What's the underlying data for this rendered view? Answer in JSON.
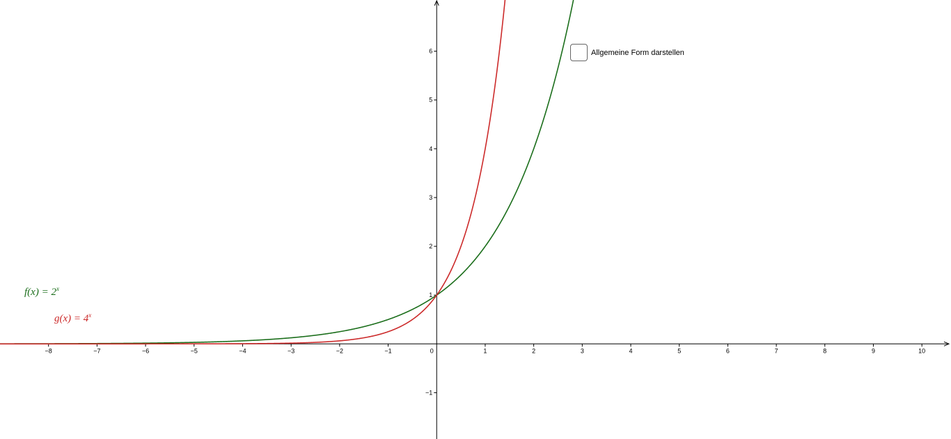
{
  "checkbox": {
    "label": "Allgemeine Form darstellen",
    "checked": false
  },
  "legend": {
    "f": {
      "prefix": "f(x) = 2",
      "exp": "x",
      "color": "#1b6e1b"
    },
    "g": {
      "prefix": "g(x) = 4",
      "exp": "x",
      "color": "#cc2a2a"
    }
  },
  "chart_data": {
    "type": "line",
    "title": "",
    "xlabel": "",
    "ylabel": "",
    "xlim": [
      -9,
      10.6
    ],
    "ylim": [
      -1.95,
      7.05
    ],
    "grid": false,
    "x_ticks": [
      -8,
      -7,
      -6,
      -5,
      -4,
      -3,
      -2,
      -1,
      0,
      1,
      2,
      3,
      4,
      5,
      6,
      7,
      8,
      9,
      10
    ],
    "y_ticks": [
      -1,
      1,
      2,
      3,
      4,
      5,
      6
    ],
    "series": [
      {
        "name": "f(x) = 2^x",
        "base": 2,
        "color": "#1b6e1b",
        "x": [
          -9,
          -8,
          -6,
          -4,
          -3,
          -2,
          -1,
          0,
          1,
          2,
          2.5,
          2.81
        ],
        "y": [
          0.002,
          0.004,
          0.016,
          0.0625,
          0.125,
          0.25,
          0.5,
          1,
          2,
          4,
          5.66,
          7.01
        ]
      },
      {
        "name": "g(x) = 4^x",
        "base": 4,
        "color": "#cc2a2a",
        "x": [
          -9,
          -6,
          -4,
          -3,
          -2,
          -1,
          0,
          0.5,
          1,
          1.25,
          1.4
        ],
        "y": [
          0.0,
          0.0002,
          0.0039,
          0.0156,
          0.0625,
          0.25,
          1,
          2,
          4,
          5.66,
          6.96
        ]
      }
    ]
  }
}
